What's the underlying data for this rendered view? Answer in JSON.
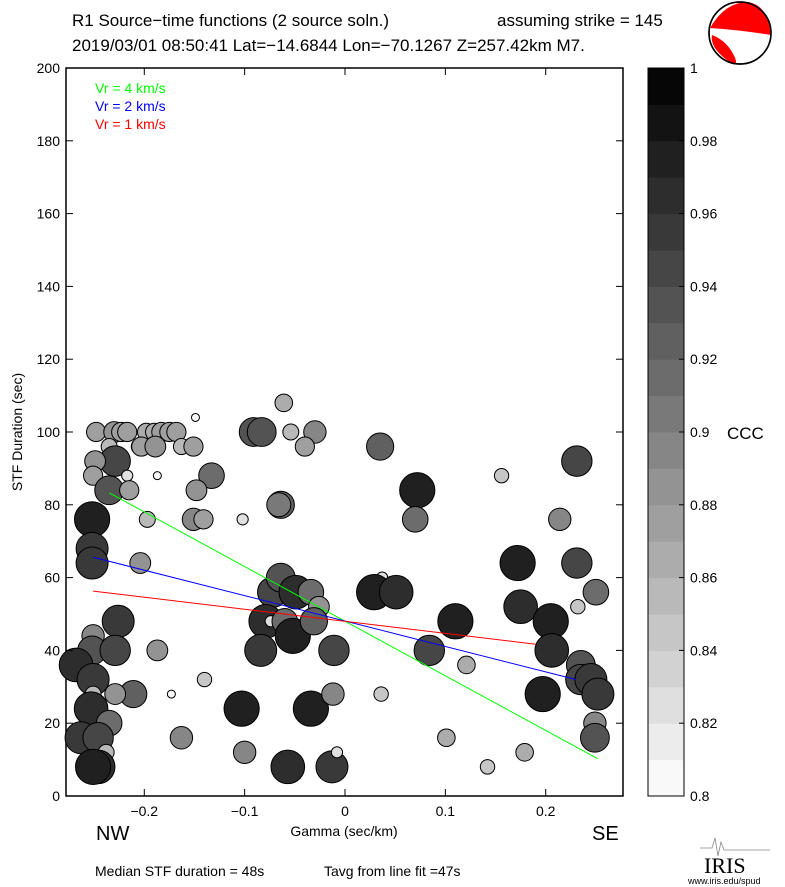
{
  "header": {
    "title_line1": "R1 Source−time functions (2 source soln.)",
    "strike_text": "assuming strike = 145",
    "title_line2": "2019/03/01 08:50:41  Lat=−14.6844 Lon=−70.1267  Z=257.42km  M7."
  },
  "footer": {
    "median": "Median STF duration = 48s",
    "tavg": "Tavg from line fit =47s",
    "logo": "IRIS",
    "logo_url_text": "www.iris.edu/spud"
  },
  "labels": {
    "nw": "NW",
    "se": "SE"
  },
  "colors": {
    "beachball": "#ff0000",
    "green": "#00ff00",
    "blue": "#0000ff",
    "red": "#ff0000"
  },
  "chart_data": {
    "type": "scatter",
    "xlabel": "Gamma (sec/km)",
    "ylabel": "STF Duration (sec)",
    "xlim": [
      -0.278,
      0.277
    ],
    "ylim": [
      0,
      200
    ],
    "xticks": [
      "−0.2",
      "−0.1",
      "0",
      "0.1",
      "0.2"
    ],
    "xtick_values": [
      -0.2,
      -0.1,
      0,
      0.1,
      0.2
    ],
    "yticks": [
      0,
      20,
      40,
      60,
      80,
      100,
      120,
      140,
      160,
      180,
      200
    ],
    "colorbar": {
      "label": "CCC",
      "range": [
        0.8,
        1
      ],
      "ticks": [
        "0.8",
        "0.82",
        "0.84",
        "0.86",
        "0.88",
        "0.9",
        "0.92",
        "0.94",
        "0.96",
        "0.98",
        "1"
      ]
    },
    "legend": [
      {
        "label": "Vr = 4 km/s",
        "color": "#00ff00"
      },
      {
        "label": "Vr = 2 km/s",
        "color": "#0000ff"
      },
      {
        "label": "Vr = 1 km/s",
        "color": "#ff0000"
      }
    ],
    "lines": [
      {
        "name": "Vr = 4 km/s",
        "color": "#00ff00",
        "x": [
          -0.235,
          0.252
        ],
        "y": [
          83.3,
          10.2
        ]
      },
      {
        "name": "Vr = 2 km/s",
        "color": "#0000ff",
        "x": [
          -0.251,
          0.23
        ],
        "y": [
          65.6,
          32
        ]
      },
      {
        "name": "Vr = 1 km/s",
        "color": "#ff0000",
        "x": [
          -0.251,
          0.19
        ],
        "y": [
          56.3,
          41.7
        ]
      }
    ],
    "points_columns": [
      "gamma",
      "duration",
      "ccc"
    ],
    "points": [
      [
        -0.248,
        100,
        0.87
      ],
      [
        -0.23,
        100,
        0.88
      ],
      [
        -0.223,
        100,
        0.87
      ],
      [
        -0.217,
        100,
        0.87
      ],
      [
        -0.198,
        100,
        0.86
      ],
      [
        -0.19,
        100,
        0.86
      ],
      [
        -0.183,
        100,
        0.87
      ],
      [
        -0.175,
        100,
        0.87
      ],
      [
        -0.168,
        100,
        0.87
      ],
      [
        -0.149,
        104,
        0.8
      ],
      [
        -0.235,
        96,
        0.85
      ],
      [
        -0.205,
        96,
        0.85
      ],
      [
        -0.203,
        96,
        0.87
      ],
      [
        -0.189,
        96,
        0.88
      ],
      [
        -0.163,
        96,
        0.85
      ],
      [
        -0.151,
        96,
        0.87
      ],
      [
        -0.229,
        92,
        0.94
      ],
      [
        -0.249,
        92,
        0.88
      ],
      [
        -0.251,
        88,
        0.87
      ],
      [
        -0.217,
        88,
        0.82
      ],
      [
        -0.187,
        88,
        0.8
      ],
      [
        -0.235,
        84,
        0.93
      ],
      [
        -0.215,
        84,
        0.87
      ],
      [
        -0.252,
        76,
        0.97
      ],
      [
        -0.197,
        76,
        0.85
      ],
      [
        -0.252,
        68,
        0.95
      ],
      [
        -0.252,
        64,
        0.95
      ],
      [
        -0.204,
        64,
        0.88
      ],
      [
        -0.226,
        48,
        0.95
      ],
      [
        -0.251,
        44,
        0.89
      ],
      [
        -0.252,
        40,
        0.93
      ],
      [
        -0.229,
        40,
        0.94
      ],
      [
        -0.268,
        36,
        0.96
      ],
      [
        -0.251,
        32,
        0.95
      ],
      [
        -0.211,
        28,
        0.92
      ],
      [
        -0.229,
        28,
        0.88
      ],
      [
        -0.251,
        28,
        0.85
      ],
      [
        -0.253,
        24,
        0.96
      ],
      [
        -0.235,
        20,
        0.91
      ],
      [
        -0.263,
        16,
        0.95
      ],
      [
        -0.246,
        16,
        0.94
      ],
      [
        -0.238,
        12,
        0.85
      ],
      [
        -0.246,
        8,
        0.96
      ],
      [
        -0.251,
        8,
        0.97
      ],
      [
        -0.187,
        40,
        0.88
      ],
      [
        -0.173,
        28,
        0.8
      ],
      [
        -0.14,
        32,
        0.84
      ],
      [
        -0.163,
        16,
        0.89
      ],
      [
        -0.091,
        100,
        0.93
      ],
      [
        -0.083,
        100,
        0.93
      ],
      [
        -0.061,
        108,
        0.86
      ],
      [
        -0.054,
        100,
        0.85
      ],
      [
        -0.03,
        100,
        0.89
      ],
      [
        -0.04,
        96,
        0.87
      ],
      [
        -0.133,
        88,
        0.91
      ],
      [
        -0.148,
        84,
        0.88
      ],
      [
        -0.102,
        76,
        0.82
      ],
      [
        -0.151,
        76,
        0.89
      ],
      [
        -0.141,
        76,
        0.87
      ],
      [
        -0.064,
        80,
        0.92
      ],
      [
        -0.066,
        80,
        0.9
      ],
      [
        -0.103,
        24,
        0.97
      ],
      [
        -0.1,
        12,
        0.89
      ],
      [
        -0.034,
        24,
        0.97
      ],
      [
        -0.072,
        56,
        0.94
      ],
      [
        -0.064,
        60,
        0.93
      ],
      [
        -0.049,
        56,
        0.96
      ],
      [
        -0.034,
        56,
        0.91
      ],
      [
        -0.026,
        52,
        0.88
      ],
      [
        -0.079,
        48,
        0.96
      ],
      [
        -0.074,
        48,
        0.82
      ],
      [
        -0.06,
        48,
        0.91
      ],
      [
        -0.052,
        44,
        0.97
      ],
      [
        -0.031,
        48,
        0.92
      ],
      [
        -0.084,
        40,
        0.95
      ],
      [
        -0.011,
        40,
        0.94
      ],
      [
        -0.057,
        8,
        0.96
      ],
      [
        -0.013,
        8,
        0.95
      ],
      [
        -0.008,
        12,
        0.82
      ],
      [
        -0.012,
        28,
        0.89
      ],
      [
        0.035,
        96,
        0.92
      ],
      [
        0.072,
        84,
        0.97
      ],
      [
        0.07,
        76,
        0.91
      ],
      [
        0.037,
        60,
        0.82
      ],
      [
        0.029,
        56,
        0.97
      ],
      [
        0.051,
        56,
        0.96
      ],
      [
        0.11,
        48,
        0.97
      ],
      [
        0.084,
        40,
        0.94
      ],
      [
        0.036,
        28,
        0.84
      ],
      [
        0.101,
        16,
        0.86
      ],
      [
        0.121,
        36,
        0.86
      ],
      [
        0.142,
        8,
        0.84
      ],
      [
        0.179,
        12,
        0.86
      ],
      [
        0.156,
        88,
        0.84
      ],
      [
        0.172,
        64,
        0.97
      ],
      [
        0.175,
        52,
        0.96
      ],
      [
        0.205,
        48,
        0.97
      ],
      [
        0.206,
        40,
        0.96
      ],
      [
        0.197,
        28,
        0.97
      ],
      [
        0.214,
        76,
        0.89
      ],
      [
        0.231,
        64,
        0.94
      ],
      [
        0.25,
        56,
        0.91
      ],
      [
        0.232,
        52,
        0.84
      ],
      [
        0.226,
        92,
        0.85
      ],
      [
        0.231,
        92,
        0.94
      ],
      [
        0.235,
        36,
        0.93
      ],
      [
        0.235,
        32,
        0.94
      ],
      [
        0.245,
        32,
        0.95
      ],
      [
        0.252,
        28,
        0.95
      ],
      [
        0.249,
        20,
        0.89
      ],
      [
        0.249,
        16,
        0.93
      ]
    ]
  }
}
